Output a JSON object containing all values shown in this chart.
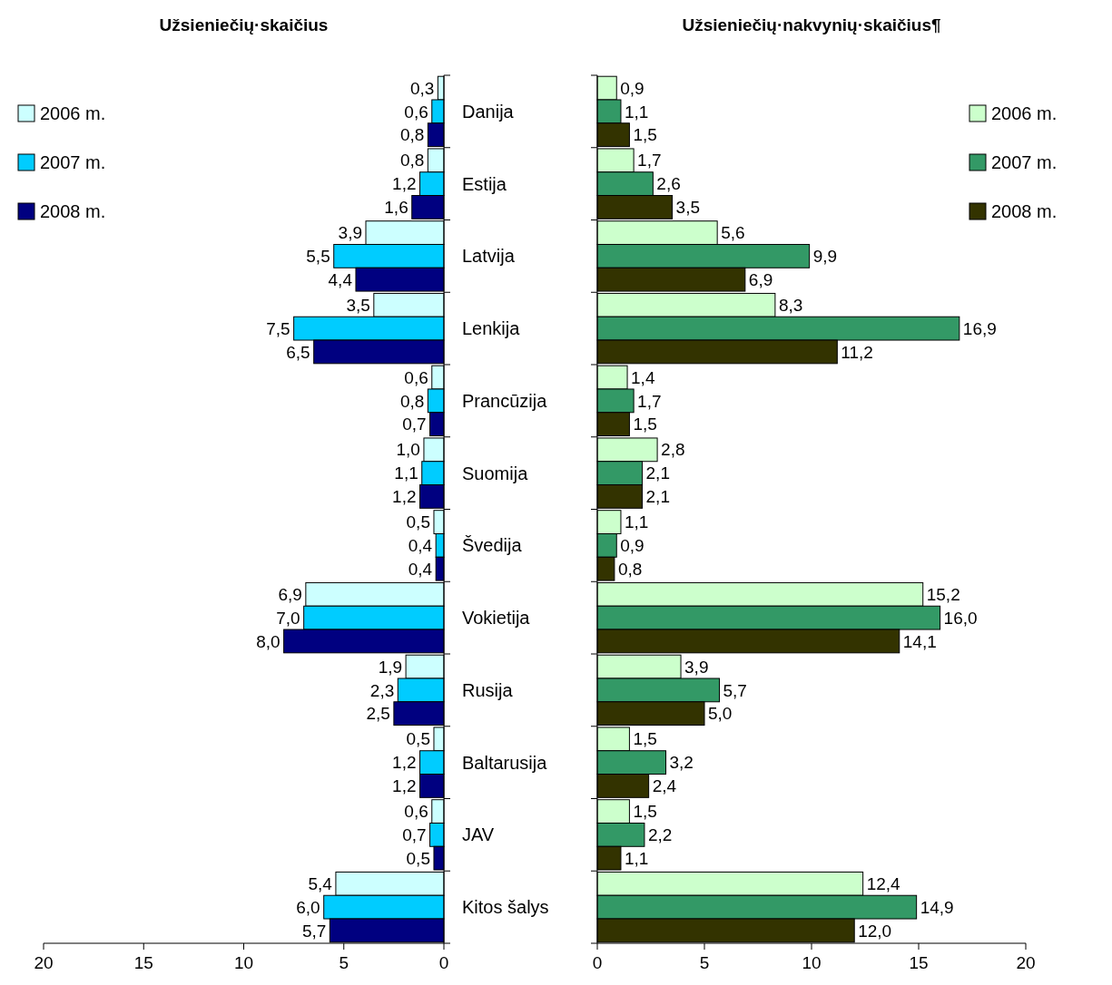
{
  "chart_data": [
    {
      "type": "bar",
      "orientation": "horizontal",
      "title": "Užsieniečių·skaičius",
      "legend": "top left",
      "categories": [
        "Danija",
        "Estija",
        "Latvija",
        "Lenkija",
        "Prancūzija",
        "Suomija",
        "Švedija",
        "Vokietija",
        "Rusija",
        "Baltarusija",
        "JAV",
        "Kitos šalys"
      ],
      "xlim": [
        20,
        0
      ],
      "xticks": [
        20,
        15,
        10,
        5,
        0
      ],
      "series": [
        {
          "name": "2006 m.",
          "color": "#ccffff",
          "values": [
            0.3,
            0.8,
            3.9,
            3.5,
            0.6,
            1.0,
            0.5,
            6.9,
            1.9,
            0.5,
            0.6,
            5.4
          ],
          "value_labels": [
            "0,3",
            "0,8",
            "3,9",
            "3,5",
            "0,6",
            "1,0",
            "0,5",
            "6,9",
            "1,9",
            "0,5",
            "0,6",
            "5,4"
          ]
        },
        {
          "name": "2007 m.",
          "color": "#00ccff",
          "values": [
            0.6,
            1.2,
            5.5,
            7.5,
            0.8,
            1.1,
            0.4,
            7.0,
            2.3,
            1.2,
            0.7,
            6.0
          ],
          "value_labels": [
            "0,6",
            "1,2",
            "5,5",
            "7,5",
            "0,8",
            "1,1",
            "0,4",
            "7,0",
            "2,3",
            "1,2",
            "0,7",
            "6,0"
          ]
        },
        {
          "name": "2008 m.",
          "color": "#000080",
          "values": [
            0.8,
            1.6,
            4.4,
            6.5,
            0.7,
            1.2,
            0.4,
            8.0,
            2.5,
            1.2,
            0.5,
            5.7
          ],
          "value_labels": [
            "0,8",
            "1,6",
            "4,4",
            "6,5",
            "0,7",
            "1,2",
            "0,4",
            "8,0",
            "2,5",
            "1,2",
            "0,5",
            "5,7"
          ]
        }
      ]
    },
    {
      "type": "bar",
      "orientation": "horizontal",
      "title": "Užsieniečių·nakvynių·skaičius¶",
      "legend": "top right",
      "categories": [
        null,
        null,
        null,
        null,
        null,
        null,
        null,
        null,
        null,
        null,
        null,
        null
      ],
      "xlim": [
        0,
        20
      ],
      "xticks": [
        0,
        5,
        10,
        15,
        20
      ],
      "series": [
        {
          "name": "2006 m.",
          "color": "#ccffcc",
          "values": [
            0.9,
            1.7,
            5.6,
            8.3,
            1.4,
            2.8,
            1.1,
            15.2,
            3.9,
            1.5,
            1.5,
            12.4
          ],
          "value_labels": [
            "0,9",
            "1,7",
            "5,6",
            "8,3",
            "1,4",
            "2,8",
            "1,1",
            "15,2",
            "3,9",
            "1,5",
            "1,5",
            "12,4"
          ]
        },
        {
          "name": "2007 m.",
          "color": "#339966",
          "values": [
            1.1,
            2.6,
            9.9,
            16.9,
            1.7,
            2.1,
            0.9,
            16.0,
            5.7,
            3.2,
            2.2,
            14.9
          ],
          "value_labels": [
            "1,1",
            "2,6",
            "9,9",
            "16,9",
            "1,7",
            "2,1",
            "0,9",
            "16,0",
            "5,7",
            "3,2",
            "2,2",
            "14,9"
          ]
        },
        {
          "name": "2008 m.",
          "color": "#333300",
          "values": [
            1.5,
            3.5,
            6.9,
            11.2,
            1.5,
            2.1,
            0.8,
            14.1,
            5.0,
            2.4,
            1.1,
            12.0
          ],
          "value_labels": [
            "1,5",
            "3,5",
            "6,9",
            "11,2",
            "1,5",
            "2,1",
            "0,8",
            "14,1",
            "5,0",
            "2,4",
            "1,1",
            "12,0"
          ]
        }
      ]
    }
  ]
}
